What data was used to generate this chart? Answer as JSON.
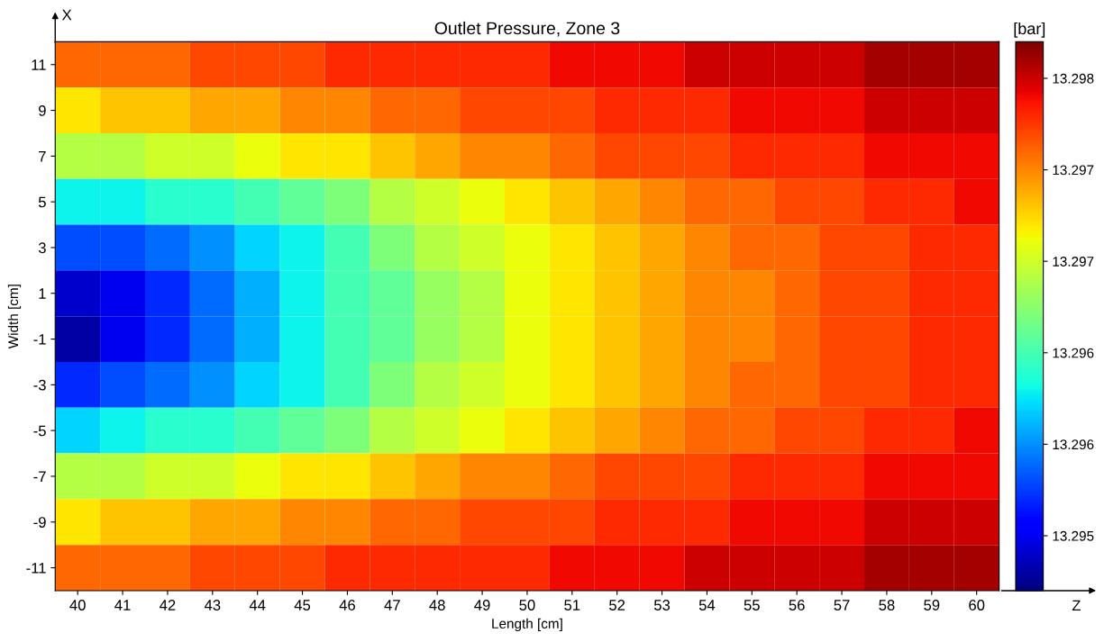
{
  "chart_data": {
    "type": "heatmap",
    "title": "Outlet Pressure, Zone 3",
    "xlabel": "Length [cm]",
    "ylabel": "Width [cm]",
    "clabel": "[bar]",
    "annotations": [
      "X",
      "Z"
    ],
    "categories": [
      "40",
      "41",
      "42",
      "43",
      "44",
      "45",
      "46",
      "47",
      "48",
      "49",
      "50",
      "51",
      "52",
      "53",
      "54",
      "55",
      "56",
      "57",
      "58",
      "59",
      "60"
    ],
    "y_categories": [
      "11",
      "9",
      "7",
      "5",
      "3",
      "1",
      "-1",
      "-3",
      "-5",
      "-7",
      "-9",
      "-11"
    ],
    "cells": [
      [
        13.2974,
        13.2974,
        13.2974,
        13.2975,
        13.2975,
        13.2975,
        13.2976,
        13.2976,
        13.2976,
        13.2976,
        13.2976,
        13.2977,
        13.2977,
        13.2977,
        13.2978,
        13.2978,
        13.2978,
        13.2978,
        13.2979,
        13.2979,
        13.2979
      ],
      [
        13.297,
        13.2971,
        13.2971,
        13.2972,
        13.2972,
        13.2973,
        13.2973,
        13.2974,
        13.2974,
        13.2975,
        13.2975,
        13.2975,
        13.2976,
        13.2976,
        13.2976,
        13.2977,
        13.2977,
        13.2977,
        13.2978,
        13.2978,
        13.2978
      ],
      [
        13.2967,
        13.2967,
        13.2968,
        13.2968,
        13.2969,
        13.297,
        13.297,
        13.2971,
        13.2972,
        13.2973,
        13.2973,
        13.2974,
        13.2975,
        13.2975,
        13.2975,
        13.2976,
        13.2976,
        13.2976,
        13.2977,
        13.2977,
        13.2977
      ],
      [
        13.2961,
        13.2961,
        13.2962,
        13.2962,
        13.2963,
        13.2964,
        13.2965,
        13.2967,
        13.2968,
        13.2969,
        13.297,
        13.2971,
        13.2972,
        13.2973,
        13.2974,
        13.2974,
        13.2975,
        13.2975,
        13.2976,
        13.2976,
        13.2977
      ],
      [
        13.2956,
        13.2956,
        13.2957,
        13.2958,
        13.296,
        13.2961,
        13.2963,
        13.2965,
        13.2967,
        13.2968,
        13.2969,
        13.297,
        13.2971,
        13.2972,
        13.2973,
        13.2974,
        13.2974,
        13.2975,
        13.2975,
        13.2976,
        13.2976
      ],
      [
        13.2952,
        13.2953,
        13.2955,
        13.2957,
        13.2959,
        13.2961,
        13.2963,
        13.2964,
        13.2966,
        13.2967,
        13.2969,
        13.297,
        13.2971,
        13.2972,
        13.2973,
        13.2973,
        13.2974,
        13.2975,
        13.2975,
        13.2976,
        13.2976
      ],
      [
        13.2951,
        13.2953,
        13.2955,
        13.2957,
        13.2959,
        13.2961,
        13.2963,
        13.2964,
        13.2966,
        13.2967,
        13.2969,
        13.297,
        13.2971,
        13.2972,
        13.2973,
        13.2973,
        13.2974,
        13.2975,
        13.2975,
        13.2976,
        13.2976
      ],
      [
        13.2955,
        13.2956,
        13.2957,
        13.2958,
        13.296,
        13.2961,
        13.2963,
        13.2965,
        13.2967,
        13.2968,
        13.2969,
        13.297,
        13.2971,
        13.2972,
        13.2973,
        13.2974,
        13.2974,
        13.2975,
        13.2975,
        13.2976,
        13.2976
      ],
      [
        13.296,
        13.2961,
        13.2962,
        13.2962,
        13.2963,
        13.2964,
        13.2965,
        13.2967,
        13.2968,
        13.2969,
        13.297,
        13.2971,
        13.2972,
        13.2973,
        13.2974,
        13.2974,
        13.2975,
        13.2975,
        13.2976,
        13.2976,
        13.2977
      ],
      [
        13.2967,
        13.2967,
        13.2968,
        13.2968,
        13.2969,
        13.297,
        13.297,
        13.2971,
        13.2972,
        13.2973,
        13.2973,
        13.2974,
        13.2975,
        13.2975,
        13.2975,
        13.2976,
        13.2976,
        13.2976,
        13.2977,
        13.2977,
        13.2977
      ],
      [
        13.297,
        13.2971,
        13.2971,
        13.2972,
        13.2972,
        13.2973,
        13.2973,
        13.2974,
        13.2974,
        13.2975,
        13.2975,
        13.2975,
        13.2976,
        13.2976,
        13.2976,
        13.2977,
        13.2977,
        13.2977,
        13.2978,
        13.2978,
        13.2978
      ],
      [
        13.2974,
        13.2974,
        13.2974,
        13.2975,
        13.2975,
        13.2975,
        13.2976,
        13.2976,
        13.2976,
        13.2976,
        13.2976,
        13.2977,
        13.2977,
        13.2977,
        13.2978,
        13.2978,
        13.2978,
        13.2978,
        13.2979,
        13.2979,
        13.2979
      ]
    ],
    "clim": [
      13.295,
      13.298
    ],
    "cticks": [
      {
        "value": 13.2953,
        "label": "13.295"
      },
      {
        "value": 13.2958,
        "label": "13.296"
      },
      {
        "value": 13.2963,
        "label": "13.296"
      },
      {
        "value": 13.2968,
        "label": "13.297"
      },
      {
        "value": 13.2973,
        "label": "13.297"
      },
      {
        "value": 13.2978,
        "label": "13.298"
      }
    ],
    "grid": false
  }
}
